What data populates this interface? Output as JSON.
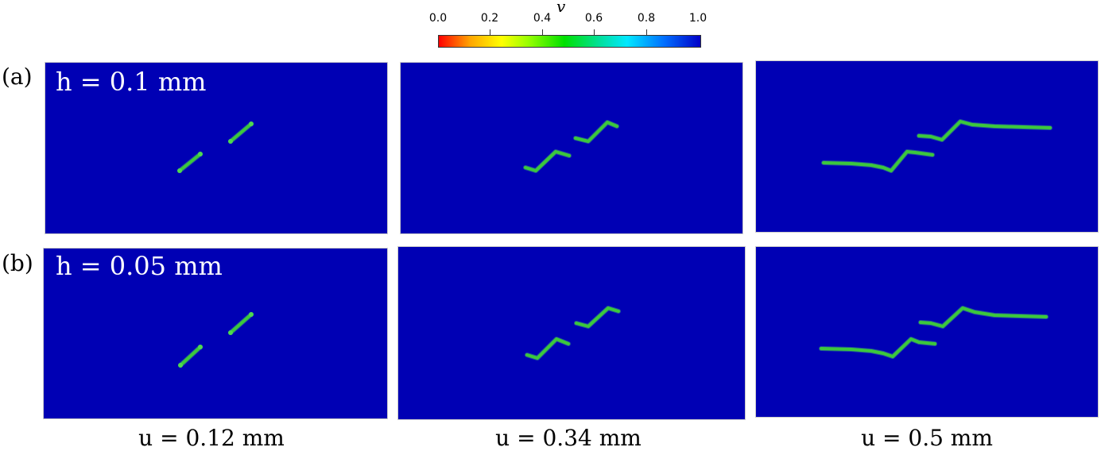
{
  "colorbar": {
    "title": "v",
    "ticks": [
      "0.0",
      "0.2",
      "0.4",
      "0.6",
      "0.8",
      "1.0"
    ],
    "colors": [
      "#ff0000",
      "#ffff00",
      "#00e000",
      "#00e8ff",
      "#0000c8"
    ]
  },
  "rows": [
    {
      "label": "(a)",
      "h_label": "h = 0.1 mm"
    },
    {
      "label": "(b)",
      "h_label": "h = 0.05 mm"
    }
  ],
  "columns": [
    {
      "u_label": "u = 0.12 mm"
    },
    {
      "u_label": "u = 0.34 mm"
    },
    {
      "u_label": "u = 0.5 mm"
    }
  ],
  "colors": {
    "background_field": "#0000b4",
    "crack": "#3cc83c"
  }
}
